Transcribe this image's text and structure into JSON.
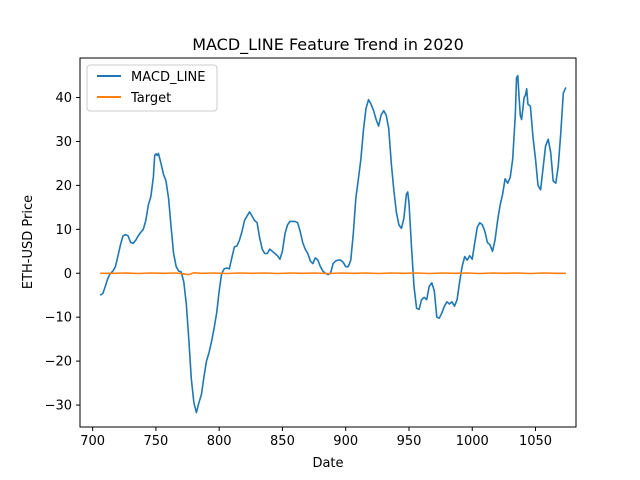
{
  "chart_data": {
    "type": "line",
    "title": "MACD_LINE Feature Trend in 2020",
    "xlabel": "Date",
    "ylabel": "ETH-USD Price",
    "xlim": [
      690,
      1082
    ],
    "ylim": [
      -35,
      49
    ],
    "xticks": [
      700,
      750,
      800,
      850,
      900,
      950,
      1000,
      1050
    ],
    "yticks": [
      -30,
      -20,
      -10,
      0,
      10,
      20,
      30,
      40
    ],
    "grid": false,
    "legend": "top-left",
    "series": [
      {
        "name": "MACD_LINE",
        "color": "#1f77b4",
        "points": [
          [
            706,
            -5.0
          ],
          [
            708,
            -4.6
          ],
          [
            710,
            -3.0
          ],
          [
            712,
            -1.2
          ],
          [
            714,
            0.0
          ],
          [
            716,
            0.5
          ],
          [
            718,
            1.5
          ],
          [
            720,
            4.0
          ],
          [
            722,
            6.5
          ],
          [
            724,
            8.5
          ],
          [
            726,
            8.8
          ],
          [
            728,
            8.5
          ],
          [
            730,
            7.0
          ],
          [
            732,
            6.8
          ],
          [
            734,
            7.5
          ],
          [
            736,
            8.5
          ],
          [
            738,
            9.3
          ],
          [
            740,
            10.0
          ],
          [
            742,
            12.0
          ],
          [
            744,
            15.5
          ],
          [
            746,
            17.5
          ],
          [
            748,
            22.0
          ],
          [
            749,
            26.8
          ],
          [
            750,
            27.2
          ],
          [
            751,
            26.8
          ],
          [
            752,
            27.3
          ],
          [
            754,
            25.0
          ],
          [
            756,
            22.5
          ],
          [
            758,
            21.0
          ],
          [
            760,
            17.0
          ],
          [
            762,
            10.5
          ],
          [
            764,
            4.5
          ],
          [
            766,
            1.5
          ],
          [
            768,
            0.5
          ],
          [
            770,
            0.3
          ],
          [
            772,
            -2.0
          ],
          [
            774,
            -7.0
          ],
          [
            776,
            -15.0
          ],
          [
            778,
            -24.0
          ],
          [
            780,
            -29.5
          ],
          [
            782,
            -31.7
          ],
          [
            784,
            -29.5
          ],
          [
            786,
            -27.5
          ],
          [
            788,
            -23.5
          ],
          [
            790,
            -20.0
          ],
          [
            792,
            -18.0
          ],
          [
            794,
            -15.5
          ],
          [
            796,
            -12.5
          ],
          [
            798,
            -9.0
          ],
          [
            800,
            -4.0
          ],
          [
            802,
            0.0
          ],
          [
            804,
            1.0
          ],
          [
            806,
            1.2
          ],
          [
            808,
            1.0
          ],
          [
            810,
            3.5
          ],
          [
            812,
            6.0
          ],
          [
            814,
            6.2
          ],
          [
            816,
            7.5
          ],
          [
            818,
            9.5
          ],
          [
            820,
            12.0
          ],
          [
            822,
            13.0
          ],
          [
            824,
            14.0
          ],
          [
            826,
            13.0
          ],
          [
            828,
            12.0
          ],
          [
            830,
            11.5
          ],
          [
            832,
            8.0
          ],
          [
            834,
            5.5
          ],
          [
            836,
            4.5
          ],
          [
            838,
            4.5
          ],
          [
            840,
            5.5
          ],
          [
            842,
            5.0
          ],
          [
            844,
            4.5
          ],
          [
            846,
            4.0
          ],
          [
            848,
            3.2
          ],
          [
            850,
            5.0
          ],
          [
            852,
            9.0
          ],
          [
            854,
            11.0
          ],
          [
            856,
            11.8
          ],
          [
            858,
            11.8
          ],
          [
            860,
            11.8
          ],
          [
            862,
            11.5
          ],
          [
            864,
            9.5
          ],
          [
            866,
            7.0
          ],
          [
            868,
            5.5
          ],
          [
            870,
            4.5
          ],
          [
            872,
            2.8
          ],
          [
            874,
            2.2
          ],
          [
            876,
            3.5
          ],
          [
            878,
            3.0
          ],
          [
            880,
            1.5
          ],
          [
            882,
            0.5
          ],
          [
            884,
            0.0
          ],
          [
            886,
            -0.3
          ],
          [
            888,
            0.0
          ],
          [
            890,
            2.2
          ],
          [
            892,
            2.8
          ],
          [
            894,
            3.0
          ],
          [
            896,
            3.0
          ],
          [
            898,
            2.5
          ],
          [
            900,
            1.5
          ],
          [
            902,
            1.5
          ],
          [
            904,
            3.0
          ],
          [
            906,
            9.0
          ],
          [
            908,
            17.0
          ],
          [
            910,
            21.5
          ],
          [
            912,
            26.0
          ],
          [
            914,
            32.5
          ],
          [
            916,
            37.5
          ],
          [
            918,
            39.5
          ],
          [
            920,
            38.5
          ],
          [
            922,
            37.0
          ],
          [
            924,
            35.0
          ],
          [
            926,
            33.5
          ],
          [
            928,
            36.0
          ],
          [
            930,
            37.0
          ],
          [
            932,
            36.0
          ],
          [
            934,
            33.0
          ],
          [
            936,
            25.0
          ],
          [
            938,
            19.0
          ],
          [
            940,
            14.0
          ],
          [
            942,
            11.0
          ],
          [
            944,
            10.2
          ],
          [
            946,
            12.5
          ],
          [
            948,
            18.0
          ],
          [
            949,
            18.5
          ],
          [
            950,
            16.0
          ],
          [
            952,
            6.0
          ],
          [
            954,
            -3.0
          ],
          [
            956,
            -8.0
          ],
          [
            958,
            -8.2
          ],
          [
            960,
            -6.0
          ],
          [
            962,
            -5.5
          ],
          [
            964,
            -6.0
          ],
          [
            966,
            -3.0
          ],
          [
            968,
            -2.2
          ],
          [
            970,
            -4.0
          ],
          [
            972,
            -10.0
          ],
          [
            974,
            -10.2
          ],
          [
            976,
            -9.0
          ],
          [
            978,
            -7.5
          ],
          [
            980,
            -6.5
          ],
          [
            982,
            -7.0
          ],
          [
            984,
            -6.5
          ],
          [
            986,
            -7.5
          ],
          [
            988,
            -6.0
          ],
          [
            990,
            -2.0
          ],
          [
            992,
            1.5
          ],
          [
            994,
            3.8
          ],
          [
            996,
            3.0
          ],
          [
            998,
            4.0
          ],
          [
            1000,
            3.2
          ],
          [
            1002,
            7.0
          ],
          [
            1004,
            10.5
          ],
          [
            1006,
            11.5
          ],
          [
            1008,
            11.0
          ],
          [
            1010,
            9.5
          ],
          [
            1012,
            7.0
          ],
          [
            1014,
            6.5
          ],
          [
            1016,
            5.0
          ],
          [
            1018,
            7.5
          ],
          [
            1020,
            12.0
          ],
          [
            1022,
            15.5
          ],
          [
            1024,
            18.0
          ],
          [
            1026,
            21.5
          ],
          [
            1028,
            20.5
          ],
          [
            1030,
            21.8
          ],
          [
            1032,
            26.0
          ],
          [
            1034,
            36.0
          ],
          [
            1035,
            44.5
          ],
          [
            1036,
            45.0
          ],
          [
            1037,
            40.0
          ],
          [
            1038,
            36.0
          ],
          [
            1039,
            35.0
          ],
          [
            1040,
            37.5
          ],
          [
            1041,
            40.0
          ],
          [
            1042,
            40.5
          ],
          [
            1043,
            42.0
          ],
          [
            1044,
            38.5
          ],
          [
            1046,
            38.0
          ],
          [
            1048,
            31.0
          ],
          [
            1050,
            26.0
          ],
          [
            1052,
            20.0
          ],
          [
            1054,
            19.0
          ],
          [
            1056,
            24.0
          ],
          [
            1058,
            29.0
          ],
          [
            1060,
            30.5
          ],
          [
            1062,
            27.5
          ],
          [
            1064,
            21.0
          ],
          [
            1066,
            20.5
          ],
          [
            1068,
            24.5
          ],
          [
            1070,
            32.0
          ],
          [
            1072,
            41.0
          ],
          [
            1074,
            42.3
          ]
        ]
      },
      {
        "name": "Target",
        "color": "#ff7f0e",
        "points": [
          [
            706,
            0.0
          ],
          [
            716,
            0.0
          ],
          [
            726,
            0.05
          ],
          [
            736,
            -0.05
          ],
          [
            746,
            0.05
          ],
          [
            756,
            0.0
          ],
          [
            766,
            0.05
          ],
          [
            776,
            -0.3
          ],
          [
            780,
            0.1
          ],
          [
            786,
            0.0
          ],
          [
            796,
            0.05
          ],
          [
            806,
            -0.05
          ],
          [
            816,
            0.05
          ],
          [
            826,
            0.0
          ],
          [
            836,
            0.05
          ],
          [
            846,
            -0.05
          ],
          [
            856,
            0.05
          ],
          [
            866,
            0.0
          ],
          [
            876,
            0.05
          ],
          [
            886,
            -0.05
          ],
          [
            896,
            0.05
          ],
          [
            906,
            0.0
          ],
          [
            916,
            0.05
          ],
          [
            926,
            -0.05
          ],
          [
            936,
            0.05
          ],
          [
            946,
            0.0
          ],
          [
            956,
            0.05
          ],
          [
            966,
            -0.05
          ],
          [
            976,
            0.05
          ],
          [
            986,
            0.0
          ],
          [
            996,
            0.05
          ],
          [
            1006,
            -0.05
          ],
          [
            1016,
            0.05
          ],
          [
            1026,
            0.0
          ],
          [
            1036,
            0.05
          ],
          [
            1046,
            -0.05
          ],
          [
            1056,
            0.05
          ],
          [
            1066,
            0.0
          ],
          [
            1074,
            0.0
          ]
        ]
      }
    ]
  }
}
